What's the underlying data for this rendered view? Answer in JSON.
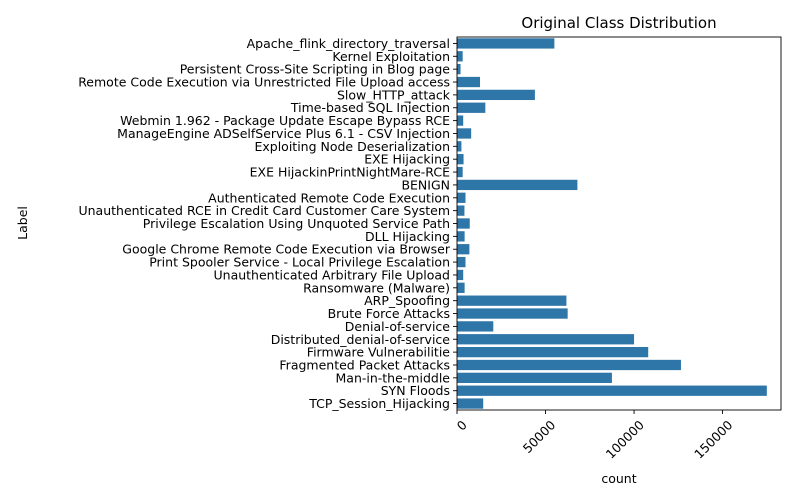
{
  "chart_data": {
    "type": "bar",
    "orientation": "horizontal",
    "title": "Original Class Distribution",
    "xlabel": "count",
    "ylabel": "Label",
    "xlim": [
      0,
      183000
    ],
    "xticks": [
      0,
      50000,
      100000,
      150000
    ],
    "xtick_labels": [
      "0",
      "50000",
      "100000",
      "150000"
    ],
    "grid": false,
    "bar_color": "#2e75a8",
    "categories": [
      "Apache_flink_directory_traversal",
      "Kernel Exploitation",
      "Persistent Cross-Site Scripting in Blog page",
      "Remote Code Execution via Unrestricted File Upload access",
      "Slow_HTTP_attack",
      "Time-based SQL Injection",
      "Webmin 1.962 - Package Update Escape Bypass RCE",
      "ManageEngine ADSelfService Plus 6.1 - CSV Injection",
      "Exploiting Node Deserialization",
      "EXE Hijacking",
      "EXE HijackinPrintNightMare-RCE",
      "BENIGN",
      "Authenticated Remote Code Execution",
      "Unauthenticated RCE in Credit Card Customer Care System",
      "Privilege Escalation Using Unquoted Service Path",
      "DLL Hijacking",
      "Google Chrome Remote Code Execution via Browser",
      "Print Spooler Service - Local Privilege Escalation",
      "Unauthenticated Arbitrary File Upload",
      "Ransomware (Malware)",
      "ARP_Spoofing",
      "Brute Force Attacks",
      "Denial-of-service",
      "Distributed_denial-of-service",
      "Firmware Vulnerabilitie",
      "Fragmented Packet Attacks",
      "Man-in-the-middle",
      "SYN Floods",
      "TCP_Session_Hijacking"
    ],
    "values": [
      55000,
      3200,
      2000,
      13000,
      44000,
      16000,
      3500,
      8000,
      2500,
      3700,
      3200,
      68000,
      4800,
      4200,
      7200,
      4300,
      7000,
      4800,
      3500,
      4300,
      61800,
      62500,
      20500,
      100000,
      108000,
      126500,
      87500,
      175000,
      14800
    ]
  }
}
